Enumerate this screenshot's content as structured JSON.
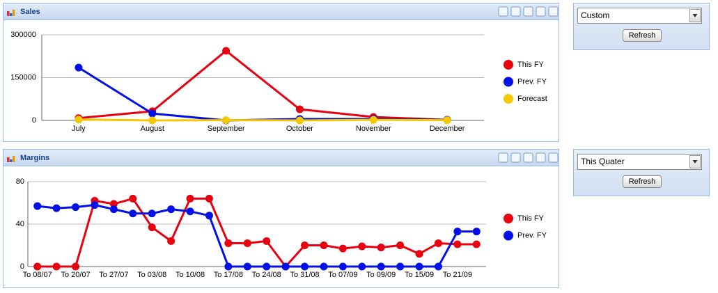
{
  "chart_data": [
    {
      "type": "line",
      "title": "Sales",
      "categories": [
        "July",
        "August",
        "September",
        "October",
        "November",
        "December"
      ],
      "series": [
        {
          "name": "This FY",
          "color": "#e8000f",
          "values": [
            8000,
            32000,
            244000,
            39000,
            12000,
            2000
          ]
        },
        {
          "name": "Prev. FY",
          "color": "#0010e6",
          "values": [
            185000,
            24000,
            0,
            5000,
            5000,
            2000
          ]
        },
        {
          "name": "Forecast",
          "color": "#f5c800",
          "values": [
            3000,
            0,
            1000,
            0,
            2000,
            1000
          ]
        }
      ],
      "ylim": [
        0,
        300000
      ],
      "yticks": [
        0,
        150000,
        300000
      ],
      "grid": true,
      "legend": "right"
    },
    {
      "type": "line",
      "title": "Margins",
      "categories": [
        "To 08/07",
        null,
        "To 20/07",
        null,
        "To 27/07",
        null,
        "To 03/08",
        null,
        "To 10/08",
        null,
        "To 17/08",
        null,
        "To 24/08",
        null,
        "To 31/08",
        null,
        "To 07/09",
        null,
        "To 09/09",
        null,
        "To 15/09",
        null,
        "To 21/09",
        null
      ],
      "series": [
        {
          "name": "This FY",
          "color": "#e8000f",
          "values": [
            0,
            0,
            0,
            62,
            59,
            64,
            37,
            24,
            64,
            64,
            22,
            22,
            24,
            0,
            20,
            20,
            17,
            19,
            18,
            20,
            12,
            22,
            21,
            21
          ]
        },
        {
          "name": "Prev. FY",
          "color": "#0010e6",
          "values": [
            57,
            55,
            56,
            58,
            54,
            50,
            50,
            54,
            52,
            48,
            0,
            0,
            0,
            0,
            0,
            0,
            0,
            0,
            0,
            0,
            0,
            0,
            33,
            33
          ]
        }
      ],
      "ylim": [
        0,
        80
      ],
      "yticks": [
        0,
        40,
        80
      ],
      "grid": true,
      "legend": "right"
    }
  ],
  "controls": [
    {
      "select": "Custom",
      "button": "Refresh"
    },
    {
      "select": "This Quater",
      "button": "Refresh"
    }
  ]
}
